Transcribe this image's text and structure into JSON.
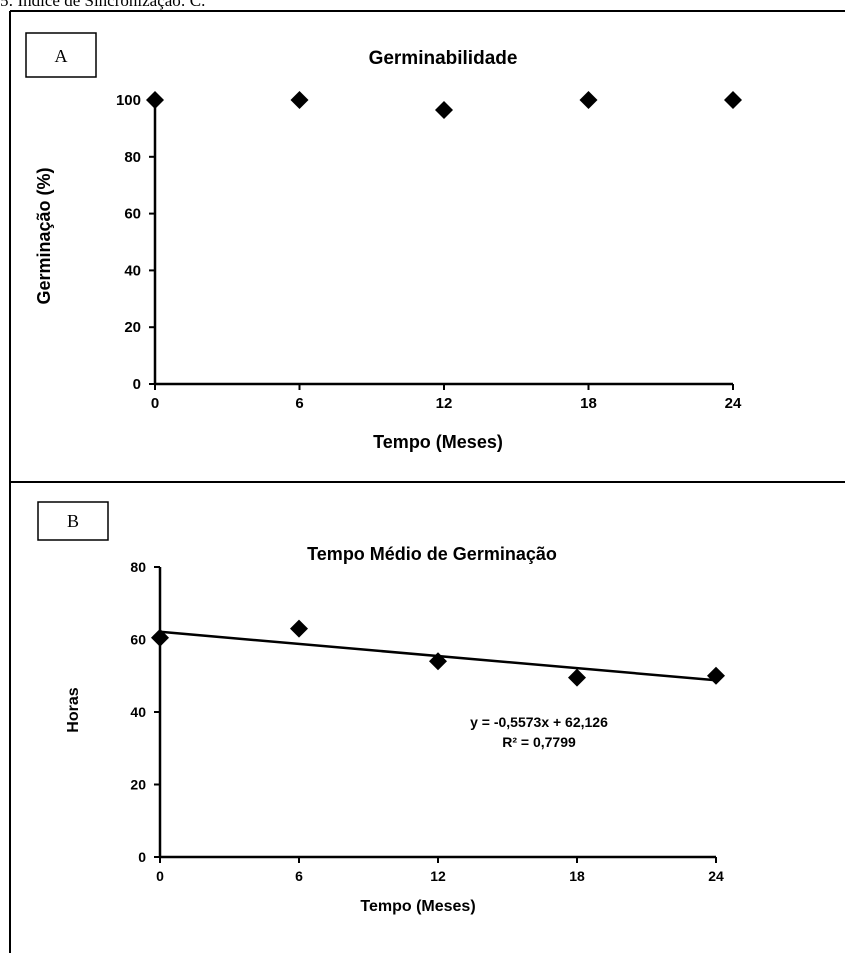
{
  "caption": "5: Índice de Sincronização: C.",
  "chart_data": [
    {
      "panel_label": "A",
      "type": "scatter",
      "title": "Germinabilidade",
      "xlabel": "Tempo (Meses)",
      "ylabel": "Germinação (%)",
      "xlim": [
        0,
        24
      ],
      "ylim": [
        0,
        100
      ],
      "x_ticks": [
        "0",
        "6",
        "12",
        "18",
        "24"
      ],
      "y_ticks": [
        "0",
        "20",
        "40",
        "60",
        "80",
        "100"
      ],
      "series": [
        {
          "x": [
            0,
            6,
            12,
            18,
            24
          ],
          "y": [
            100,
            100,
            96.5,
            100,
            100
          ]
        }
      ]
    },
    {
      "panel_label": "B",
      "type": "scatter",
      "title": "Tempo Médio de Germinação",
      "xlabel": "Tempo (Meses)",
      "ylabel": "Horas",
      "xlim": [
        0,
        24
      ],
      "ylim": [
        0,
        80
      ],
      "x_ticks": [
        "0",
        "6",
        "12",
        "18",
        "24"
      ],
      "y_ticks": [
        "0",
        "20",
        "40",
        "60",
        "80"
      ],
      "series": [
        {
          "x": [
            0,
            6,
            12,
            18,
            24
          ],
          "y": [
            60.5,
            63,
            54,
            49.5,
            50
          ]
        }
      ],
      "trendline": {
        "slope": -0.5573,
        "intercept": 62.126
      },
      "annotation": [
        "y = -0,5573x + 62,126",
        "R² = 0,7799"
      ]
    }
  ]
}
